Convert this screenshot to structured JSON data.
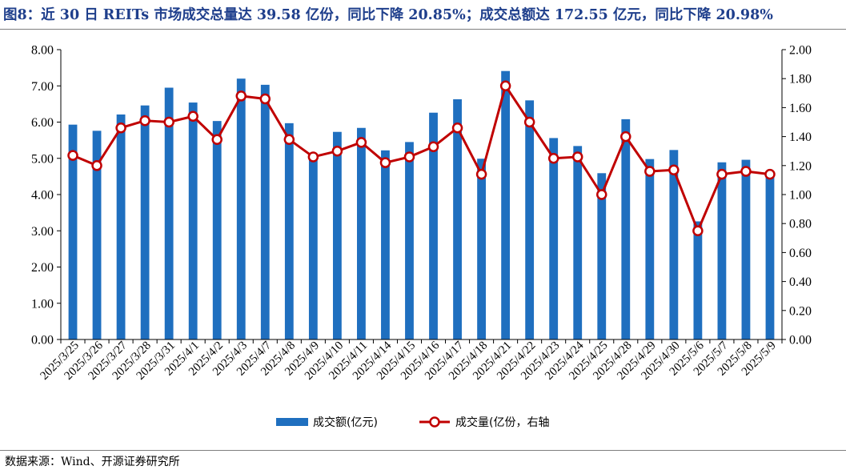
{
  "title": "图8：近 30 日 REITs 市场成交总量达 39.58 亿份，同比下降 20.85%；成交总额达 172.55 亿元，同比下降 20.98%",
  "source": "数据来源：Wind、开源证券研究所",
  "colors": {
    "bar": "#1f6fbf",
    "line": "#c00000",
    "title": "#1f3f8c"
  },
  "chart_data": {
    "type": "bar+line",
    "categories": [
      "2025/3/25",
      "2025/3/26",
      "2025/3/27",
      "2025/3/28",
      "2025/3/31",
      "2025/4/1",
      "2025/4/2",
      "2025/4/3",
      "2025/4/7",
      "2025/4/8",
      "2025/4/9",
      "2025/4/10",
      "2025/4/11",
      "2025/4/14",
      "2025/4/15",
      "2025/4/16",
      "2025/4/17",
      "2025/4/18",
      "2025/4/21",
      "2025/4/22",
      "2025/4/23",
      "2025/4/24",
      "2025/4/25",
      "2025/4/28",
      "2025/4/29",
      "2025/4/30",
      "2025/5/6",
      "2025/5/7",
      "2025/5/8",
      "2025/5/9"
    ],
    "series": [
      {
        "name": "成交额(亿元)",
        "type": "bar",
        "axis": "left",
        "values": [
          5.93,
          5.76,
          6.21,
          6.46,
          6.95,
          6.54,
          6.03,
          7.2,
          7.03,
          5.97,
          5.03,
          5.73,
          5.84,
          5.22,
          5.45,
          6.26,
          6.63,
          4.99,
          7.41,
          6.6,
          5.56,
          5.34,
          4.59,
          6.08,
          4.98,
          5.23,
          3.26,
          4.89,
          4.96,
          4.61
        ]
      },
      {
        "name": "成交量(亿份，右轴",
        "type": "line",
        "axis": "right",
        "values": [
          1.27,
          1.2,
          1.46,
          1.51,
          1.5,
          1.54,
          1.38,
          1.68,
          1.66,
          1.38,
          1.26,
          1.3,
          1.36,
          1.22,
          1.26,
          1.33,
          1.46,
          1.14,
          1.75,
          1.5,
          1.25,
          1.26,
          1.0,
          1.4,
          1.16,
          1.17,
          0.75,
          1.14,
          1.16,
          1.14
        ]
      }
    ],
    "y_left": {
      "min": 0,
      "max": 8,
      "step": 1,
      "ticks": [
        "0.00",
        "1.00",
        "2.00",
        "3.00",
        "4.00",
        "5.00",
        "6.00",
        "7.00",
        "8.00"
      ]
    },
    "y_right": {
      "min": 0,
      "max": 2,
      "step": 0.2,
      "ticks": [
        "0.00",
        "0.20",
        "0.40",
        "0.60",
        "0.80",
        "1.00",
        "1.20",
        "1.40",
        "1.60",
        "1.80",
        "2.00"
      ]
    },
    "grid": false,
    "legend": "bottom-center"
  }
}
